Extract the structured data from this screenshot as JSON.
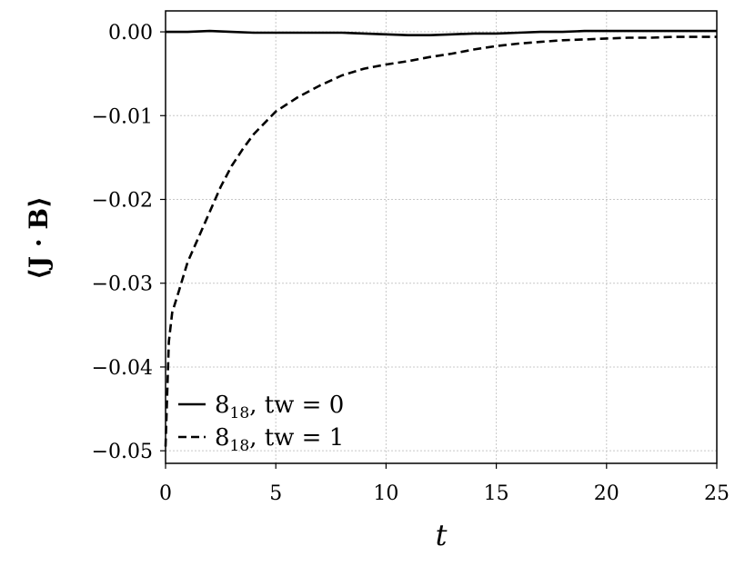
{
  "chart_data": {
    "type": "line",
    "xlabel": "t",
    "ylabel": "⟨J · B⟩",
    "xlim": [
      0,
      25
    ],
    "ylim": [
      -0.0515,
      0.0025
    ],
    "xticks": [
      0,
      5,
      10,
      15,
      20,
      25
    ],
    "yticks": [
      0.0,
      -0.01,
      -0.02,
      -0.03,
      -0.04,
      -0.05
    ],
    "xtick_labels": [
      "0",
      "5",
      "10",
      "15",
      "20",
      "25"
    ],
    "ytick_labels": [
      "0.00",
      "−0.01",
      "−0.02",
      "−0.03",
      "−0.04",
      "−0.05"
    ],
    "grid": true,
    "legend_position": "bottom-left",
    "series": [
      {
        "name": "8₁₈, tw = 0",
        "legend_main": "8",
        "legend_sub": "18",
        "legend_rest": ", tw = 0",
        "style": "solid",
        "color": "#000000",
        "x": [
          0,
          1,
          2,
          3,
          4,
          5,
          6,
          7,
          8,
          9,
          10,
          11,
          12,
          13,
          14,
          15,
          16,
          17,
          18,
          19,
          20,
          21,
          22,
          23,
          24,
          25
        ],
        "y": [
          0.0,
          0.0,
          0.0001,
          0.0,
          -0.0001,
          -0.0001,
          -0.0001,
          -0.0001,
          -0.0001,
          -0.0002,
          -0.0003,
          -0.0004,
          -0.0004,
          -0.0003,
          -0.0002,
          -0.0002,
          -0.0001,
          0.0,
          0.0,
          0.0001,
          0.0001,
          0.0001,
          0.0001,
          0.0001,
          0.0001,
          0.0001
        ]
      },
      {
        "name": "8₁₈, tw = 1",
        "legend_main": "8",
        "legend_sub": "18",
        "legend_rest": ", tw = 1",
        "style": "dashed",
        "color": "#000000",
        "x": [
          0,
          0.15,
          0.3,
          0.6,
          1,
          1.5,
          2,
          2.5,
          3,
          3.5,
          4,
          5,
          6,
          7,
          8,
          9,
          10,
          11,
          12,
          13,
          14,
          15,
          16,
          17,
          18,
          19,
          20,
          21,
          22,
          23,
          24,
          25
        ],
        "y": [
          -0.0495,
          -0.037,
          -0.0335,
          -0.031,
          -0.0275,
          -0.0245,
          -0.0215,
          -0.0185,
          -0.016,
          -0.014,
          -0.0122,
          -0.0095,
          -0.0078,
          -0.0064,
          -0.0052,
          -0.0044,
          -0.0039,
          -0.0035,
          -0.003,
          -0.0026,
          -0.0021,
          -0.0017,
          -0.0014,
          -0.0012,
          -0.001,
          -0.0009,
          -0.0008,
          -0.0007,
          -0.0007,
          -0.0006,
          -0.0006,
          -0.0006
        ]
      }
    ]
  }
}
